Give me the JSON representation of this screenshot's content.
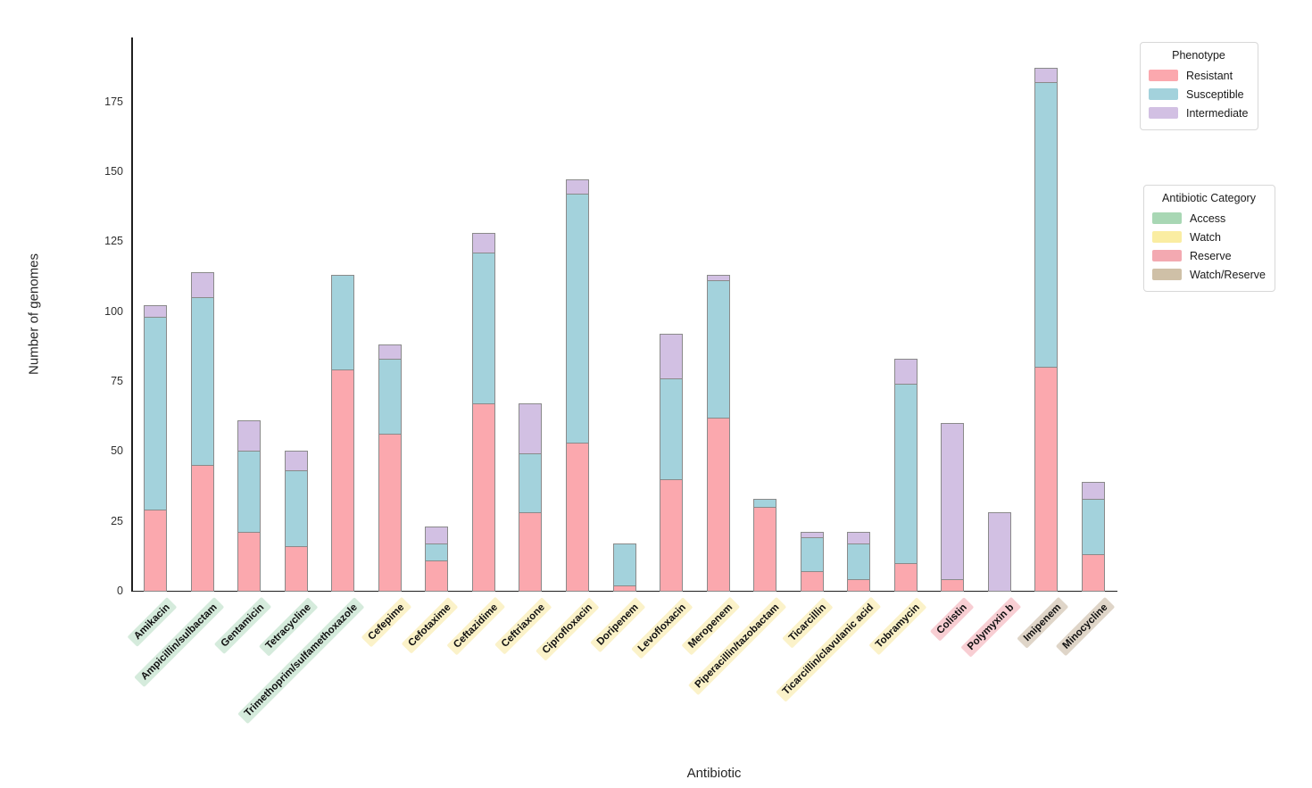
{
  "figure": {
    "xlabel": "Antibiotic",
    "ylabel": "Number of genomes"
  },
  "legend_phenotype": {
    "title": "Phenotype"
  },
  "legend_category": {
    "title": "Antibiotic Category"
  },
  "antibiotic_categories": [
    {
      "name": "Access",
      "swatch": "#a8d7b4",
      "label_bg": "#d5ebdc"
    },
    {
      "name": "Watch",
      "swatch": "#faeda2",
      "label_bg": "#fbf2c9"
    },
    {
      "name": "Reserve",
      "swatch": "#f3a9b1",
      "label_bg": "#f8ced3"
    },
    {
      "name": "Watch/Reserve",
      "swatch": "#cfc0a7",
      "label_bg": "#dfd5c8"
    }
  ],
  "chart_data": {
    "type": "bar",
    "stacked": true,
    "title": "",
    "xlabel": "Antibiotic",
    "ylabel": "Number of genomes",
    "ylim": [
      0,
      197
    ],
    "yticks": [
      0,
      25,
      50,
      75,
      100,
      125,
      150,
      175
    ],
    "grid": false,
    "legend_position": "right-outside",
    "bar_edge_color": "#8a8a8a",
    "categories": [
      "Amikacin",
      "Ampicillin/sulbactam",
      "Gentamicin",
      "Tetracycline",
      "Trimethoprim/sulfamethoxazole",
      "Cefepime",
      "Cefotaxime",
      "Ceftazidime",
      "Ceftriaxone",
      "Ciprofloxacin",
      "Doripenem",
      "Levofloxacin",
      "Meropenem",
      "Piperacillin/tazobactam",
      "Ticarcillin",
      "Ticarcillin/clavulanic acid",
      "Tobramycin",
      "Colistin",
      "Polymyxin b",
      "Imipenem",
      "Minocycline"
    ],
    "category_group": [
      "Access",
      "Access",
      "Access",
      "Access",
      "Access",
      "Watch",
      "Watch",
      "Watch",
      "Watch",
      "Watch",
      "Watch",
      "Watch",
      "Watch",
      "Watch",
      "Watch",
      "Watch",
      "Watch",
      "Reserve",
      "Reserve",
      "Watch/Reserve",
      "Watch/Reserve"
    ],
    "series": [
      {
        "name": "Resistant",
        "color": "#fba8ae",
        "values": [
          29,
          45,
          21,
          16,
          79,
          56,
          11,
          67,
          28,
          53,
          2,
          40,
          62,
          30,
          7,
          4,
          10,
          4,
          0,
          80,
          13
        ]
      },
      {
        "name": "Susceptible",
        "color": "#a3d2dc",
        "values": [
          69,
          60,
          29,
          27,
          34,
          27,
          6,
          54,
          21,
          89,
          15,
          36,
          49,
          3,
          12,
          13,
          64,
          0,
          0,
          102,
          20
        ]
      },
      {
        "name": "Intermediate",
        "color": "#d2c0e3",
        "values": [
          4,
          9,
          11,
          7,
          0,
          5,
          6,
          7,
          18,
          5,
          0,
          16,
          2,
          0,
          2,
          4,
          9,
          56,
          28,
          5,
          6
        ]
      }
    ]
  }
}
